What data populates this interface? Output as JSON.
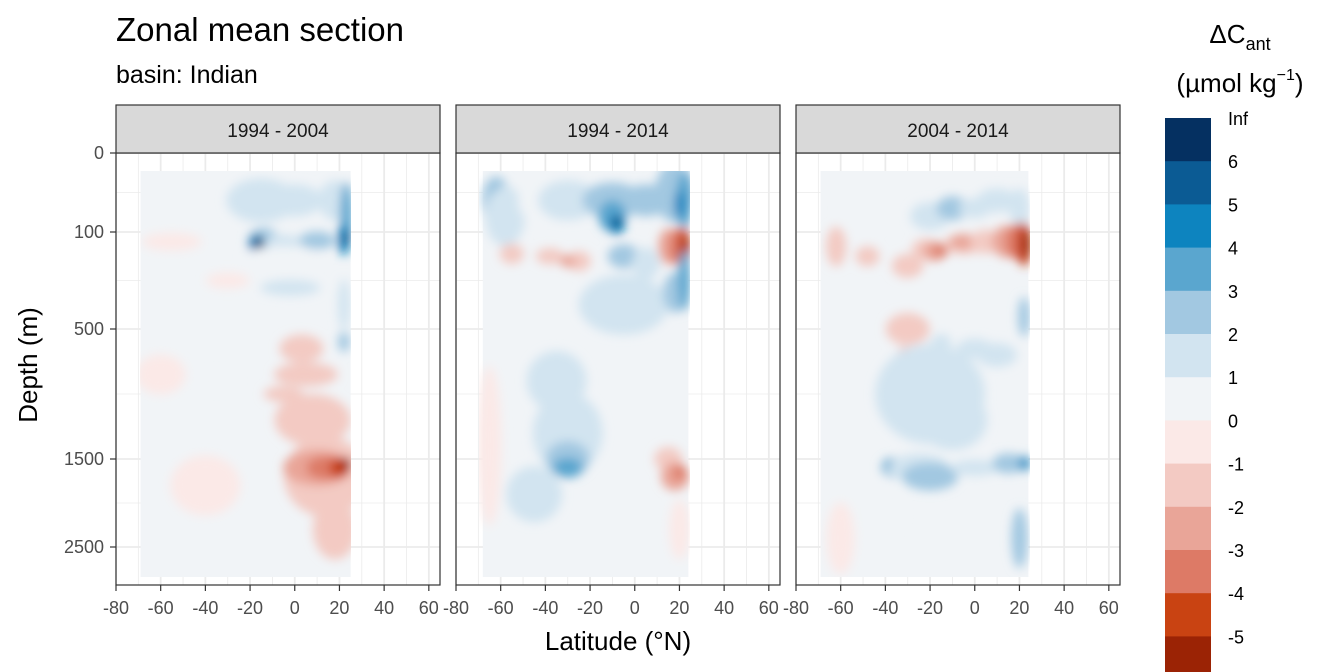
{
  "chart_data": {
    "type": "heatmap",
    "title": "Zonal mean section",
    "subtitle": "basin: Indian",
    "xlabel": "Latitude (°N)",
    "ylabel": "Depth (m)",
    "xlim": [
      -80,
      65
    ],
    "x_ticks": [
      "-80",
      "-60",
      "-40",
      "-20",
      "0",
      "20",
      "40",
      "60"
    ],
    "y_ticks": [
      "0",
      "100",
      "500",
      "1500",
      "2500"
    ],
    "y_tick_values": [
      0,
      100,
      500,
      1500,
      2500
    ],
    "legend": {
      "title": "ΔC",
      "title_sub": "ant",
      "unit": "(µmol kg",
      "unit_sup": "−1",
      "unit_close": ")",
      "labels": [
        "Inf",
        "6",
        "5",
        "4",
        "3",
        "2",
        "1",
        "0",
        "-1",
        "-2",
        "-3",
        "-4",
        "-5"
      ],
      "colors": [
        "#053061",
        "#0b5b94",
        "#0d84bf",
        "#5aa6cf",
        "#a2c8e1",
        "#d2e4f0",
        "#f1f4f7",
        "#fbe9e7",
        "#f3cac3",
        "#e9a598",
        "#dd7a66",
        "#c94312",
        "#9b2305"
      ]
    },
    "panels": [
      {
        "label": "1994 - 2004",
        "lat_range": [
          -69,
          25
        ]
      },
      {
        "label": "1994 - 2014",
        "lat_range": [
          -68,
          24
        ]
      },
      {
        "label": "2004 - 2014",
        "lat_range": [
          -69,
          24
        ]
      }
    ]
  }
}
